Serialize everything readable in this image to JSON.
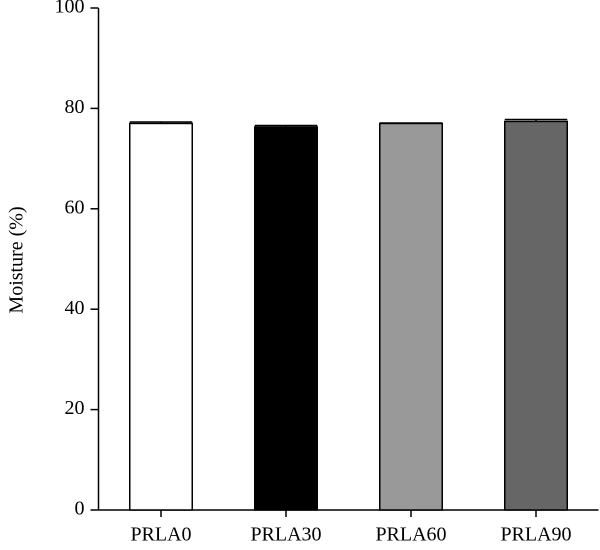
{
  "chart_data": {
    "type": "bar",
    "ylabel": "Moisture (%)",
    "categories": [
      "PRLA0",
      "PRLA30",
      "PRLA60",
      "PRLA90"
    ],
    "values": [
      77,
      76.3,
      77,
      77.4
    ],
    "errors": [
      0.3,
      0.3,
      0.1,
      0.4
    ],
    "colors": [
      "#ffffff",
      "#000000",
      "#999999",
      "#666666"
    ],
    "ylim": [
      0,
      100
    ],
    "yticks": [
      0,
      20,
      40,
      60,
      80,
      100
    ]
  }
}
